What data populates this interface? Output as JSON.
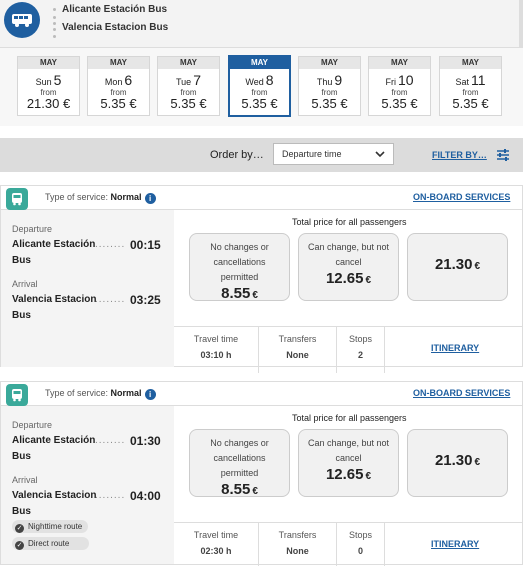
{
  "route": {
    "origin": "Alicante Estación Bus",
    "destination": "Valencia Estacion Bus"
  },
  "dates": [
    {
      "month": "MAY",
      "weekday": "Sun",
      "day": "5",
      "from": "from",
      "price": "21.30 €",
      "selected": false
    },
    {
      "month": "MAY",
      "weekday": "Mon",
      "day": "6",
      "from": "from",
      "price": "5.35 €",
      "selected": false
    },
    {
      "month": "MAY",
      "weekday": "Tue",
      "day": "7",
      "from": "from",
      "price": "5.35 €",
      "selected": false
    },
    {
      "month": "MAY",
      "weekday": "Wed",
      "day": "8",
      "from": "from",
      "price": "5.35 €",
      "selected": true
    },
    {
      "month": "MAY",
      "weekday": "Thu",
      "day": "9",
      "from": "from",
      "price": "5.35 €",
      "selected": false
    },
    {
      "month": "MAY",
      "weekday": "Fri",
      "day": "10",
      "from": "from",
      "price": "5.35 €",
      "selected": false
    },
    {
      "month": "MAY",
      "weekday": "Sat",
      "day": "11",
      "from": "from",
      "price": "5.35 €",
      "selected": false
    }
  ],
  "order": {
    "label": "Order by…",
    "selected": "Departure time",
    "filter_label": "FILTER BY…"
  },
  "trips": [
    {
      "service_label": "Type of service:",
      "service_value": "Normal",
      "onboard_label": "ON-BOARD SERVICES",
      "departure_label": "Departure",
      "departure_station_1": "Alicante Estación",
      "departure_station_2": "Bus",
      "departure_time": "00:15",
      "arrival_label": "Arrival",
      "arrival_station_1": "Valencia Estacion",
      "arrival_station_2": "Bus",
      "arrival_time": "03:25",
      "tags": [],
      "total_label": "Total price for all passengers",
      "fare1_cond": [
        "No changes or",
        "cancellations",
        "permitted"
      ],
      "fare1_price": "8.55",
      "fare2_cond": [
        "Can change, but not",
        "cancel"
      ],
      "fare2_price": "12.65",
      "fare3_price": "21.30",
      "currency": "€",
      "travel_time_label": "Travel time",
      "travel_time": "03:10 h",
      "transfers_label": "Transfers",
      "transfers": "None",
      "stops_label": "Stops",
      "stops": "2",
      "itinerary_label": "ITINERARY"
    },
    {
      "service_label": "Type of service:",
      "service_value": "Normal",
      "onboard_label": "ON-BOARD SERVICES",
      "departure_label": "Departure",
      "departure_station_1": "Alicante Estación",
      "departure_station_2": "Bus",
      "departure_time": "01:30",
      "arrival_label": "Arrival",
      "arrival_station_1": "Valencia Estacion",
      "arrival_station_2": "Bus",
      "arrival_time": "04:00",
      "tags": [
        "Nighttime route",
        "Direct route"
      ],
      "total_label": "Total price for all passengers",
      "fare1_cond": [
        "No changes or",
        "cancellations",
        "permitted"
      ],
      "fare1_price": "8.55",
      "fare2_cond": [
        "Can change, but not",
        "cancel"
      ],
      "fare2_price": "12.65",
      "fare3_price": "21.30",
      "currency": "€",
      "travel_time_label": "Travel time",
      "travel_time": "02:30 h",
      "transfers_label": "Transfers",
      "transfers": "None",
      "stops_label": "Stops",
      "stops": "0",
      "itinerary_label": "ITINERARY"
    }
  ],
  "colors": {
    "brand": "#1f5fa0",
    "bus_badge": "#3aa99a"
  },
  "icons": {
    "route": "bus-icon",
    "trip": "bus-icon",
    "info": "info-icon",
    "filter": "filter-icon",
    "dropdown": "chevron-down-icon",
    "tag": "check-icon"
  }
}
